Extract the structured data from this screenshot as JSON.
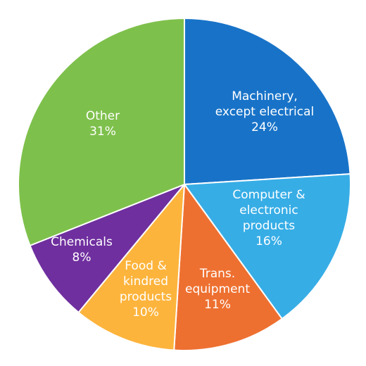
{
  "chart_data": {
    "type": "pie",
    "start": "12 o'clock",
    "direction": "clockwise",
    "slices": [
      {
        "lines": [
          "Machinery,",
          "except electrical",
          "24%"
        ],
        "value": 24,
        "color": "#1873c8",
        "label_color": "#ffffff"
      },
      {
        "lines": [
          "Computer &",
          "electronic",
          "products",
          "16%"
        ],
        "value": 16,
        "color": "#37ade6",
        "label_color": "#ffffff"
      },
      {
        "lines": [
          "Trans.",
          "equipment",
          "11%"
        ],
        "value": 11,
        "color": "#ee7030",
        "label_color": "#ffffff"
      },
      {
        "lines": [
          "Food &",
          "kindred",
          "products",
          "10%"
        ],
        "value": 10,
        "color": "#fdb43c",
        "label_color": "#1f1f1f"
      },
      {
        "lines": [
          "Chemicals",
          "8%"
        ],
        "value": 8,
        "color": "#6f2f9f",
        "label_color": "#ffffff"
      },
      {
        "lines": [
          "Other",
          "31%"
        ],
        "value": 31,
        "color": "#7ec04c",
        "label_color": "#ffffff"
      }
    ]
  }
}
